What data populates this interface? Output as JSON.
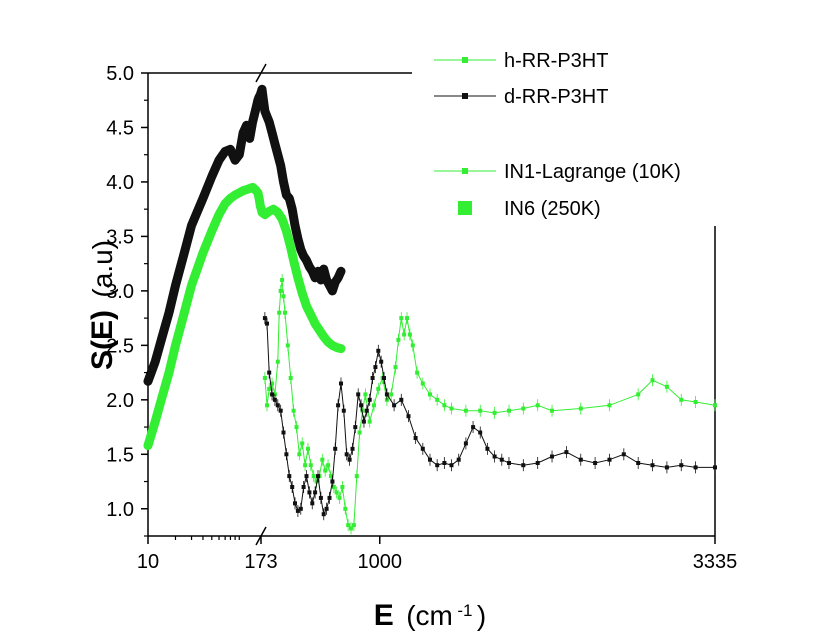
{
  "chart_data": {
    "type": "scatter",
    "title": "",
    "xlabel": {
      "main": "E",
      "unit_base": "(cm",
      "unit_exp": "-1",
      "unit_close": ")"
    },
    "ylabel": {
      "main": "S(E)",
      "unit": "(a.u)"
    },
    "ylim": [
      0.75,
      5.0
    ],
    "x_segments": [
      {
        "range": [
          10,
          173
        ],
        "scale": "log"
      },
      {
        "range": [
          173,
          3335
        ],
        "scale": "linear"
      }
    ],
    "x_ticks": [
      {
        "value": 10,
        "label": "10"
      },
      {
        "value": 173,
        "label": "173"
      },
      {
        "value": 1000,
        "label": "1000"
      },
      {
        "value": 3335,
        "label": "3335"
      }
    ],
    "y_ticks": [
      {
        "value": 1.0,
        "label": "1.0"
      },
      {
        "value": 1.5,
        "label": "1.5"
      },
      {
        "value": 2.0,
        "label": "2.0"
      },
      {
        "value": 2.5,
        "label": "2.5"
      },
      {
        "value": 3.0,
        "label": "3.0"
      },
      {
        "value": 3.5,
        "label": "3.5"
      },
      {
        "value": 4.0,
        "label": "4.0"
      },
      {
        "value": 4.5,
        "label": "4.5"
      },
      {
        "value": 5.0,
        "label": "5.0"
      }
    ],
    "legend_position": "top-right",
    "series": [
      {
        "name": "h-RR-P3HT",
        "color": "#33ee33",
        "style": "thick-markers",
        "x": [
          10,
          12,
          14,
          17,
          20,
          25,
          30,
          40,
          50,
          60,
          70,
          80,
          90,
          100,
          110,
          120,
          130,
          140,
          150,
          160,
          165,
          170,
          173,
          180,
          200,
          230,
          260,
          290,
          320,
          350,
          380,
          400,
          430,
          460,
          490,
          520,
          550,
          580,
          610,
          640,
          670,
          700,
          730
        ],
        "values": [
          1.58,
          1.8,
          2.0,
          2.25,
          2.5,
          2.8,
          3.05,
          3.35,
          3.55,
          3.7,
          3.8,
          3.85,
          3.88,
          3.9,
          3.92,
          3.93,
          3.94,
          3.95,
          3.93,
          3.9,
          3.85,
          3.78,
          3.76,
          3.72,
          3.7,
          3.73,
          3.75,
          3.72,
          3.66,
          3.55,
          3.4,
          3.28,
          3.12,
          2.98,
          2.86,
          2.78,
          2.7,
          2.64,
          2.58,
          2.53,
          2.5,
          2.48,
          2.47
        ]
      },
      {
        "name": "d-RR-P3HT",
        "color": "#111111",
        "style": "thick-markers",
        "x": [
          10,
          12,
          14,
          17,
          20,
          25,
          30,
          40,
          50,
          60,
          70,
          80,
          90,
          100,
          110,
          120,
          130,
          140,
          150,
          160,
          165,
          170,
          173,
          180,
          190,
          200,
          215,
          230,
          250,
          270,
          290,
          310,
          330,
          350,
          370,
          390,
          410,
          430,
          450,
          470,
          490,
          510,
          530,
          550,
          570,
          590,
          610,
          630,
          650,
          670,
          690,
          710,
          730
        ],
        "values": [
          2.17,
          2.35,
          2.55,
          2.8,
          3.05,
          3.35,
          3.6,
          3.85,
          4.05,
          4.2,
          4.28,
          4.3,
          4.2,
          4.25,
          4.45,
          4.52,
          4.4,
          4.55,
          4.65,
          4.75,
          4.78,
          4.8,
          4.82,
          4.85,
          4.75,
          4.65,
          4.6,
          4.55,
          4.45,
          4.35,
          4.25,
          4.15,
          4.0,
          3.88,
          3.85,
          3.75,
          3.6,
          3.48,
          3.38,
          3.32,
          3.28,
          3.22,
          3.18,
          3.12,
          3.18,
          3.1,
          3.2,
          3.1,
          3.05,
          3.0,
          3.08,
          3.12,
          3.18
        ]
      },
      {
        "name": "IN1-Lagrange (10K)",
        "color": "#33ee33",
        "style": "thin-line-markers",
        "x": [
          200,
          215,
          230,
          250,
          270,
          290,
          300,
          310,
          320,
          330,
          340,
          360,
          380,
          400,
          420,
          440,
          460,
          480,
          500,
          520,
          540,
          560,
          580,
          600,
          620,
          640,
          660,
          680,
          700,
          720,
          740,
          760,
          780,
          800,
          820,
          840,
          860,
          880,
          900,
          930,
          960,
          990,
          1020,
          1050,
          1080,
          1110,
          1130,
          1150,
          1170,
          1190,
          1210,
          1230,
          1260,
          1300,
          1350,
          1400,
          1450,
          1500,
          1600,
          1700,
          1800,
          1900,
          2000,
          2100,
          2200,
          2400,
          2600,
          2800,
          2900,
          3000,
          3100,
          3200,
          3335
        ],
        "values": [
          2.2,
          1.95,
          2.1,
          2.15,
          2.05,
          2.35,
          2.8,
          3.0,
          3.1,
          2.95,
          2.8,
          2.5,
          2.2,
          1.9,
          1.75,
          1.5,
          1.6,
          1.4,
          1.55,
          1.4,
          1.3,
          1.25,
          1.3,
          1.45,
          1.35,
          1.4,
          1.3,
          1.2,
          1.15,
          1.1,
          1.2,
          1.0,
          0.85,
          0.82,
          0.85,
          1.3,
          1.7,
          1.9,
          2.05,
          1.8,
          1.95,
          2.1,
          2.2,
          2.0,
          2.05,
          2.3,
          2.55,
          2.75,
          2.6,
          2.75,
          2.6,
          2.5,
          2.25,
          2.15,
          2.05,
          2.0,
          1.95,
          1.92,
          1.9,
          1.9,
          1.88,
          1.9,
          1.92,
          1.95,
          1.9,
          1.92,
          1.95,
          2.05,
          2.18,
          2.12,
          2.0,
          1.98,
          1.95
        ]
      },
      {
        "name": "IN6 (250K)",
        "color": "#111111",
        "style": "thin-line-markers",
        "x": [
          200,
          215,
          230,
          250,
          270,
          290,
          310,
          330,
          350,
          370,
          390,
          410,
          430,
          450,
          470,
          490,
          510,
          530,
          550,
          570,
          590,
          610,
          630,
          650,
          670,
          690,
          710,
          730,
          750,
          770,
          790,
          810,
          830,
          850,
          870,
          890,
          910,
          930,
          950,
          970,
          990,
          1010,
          1030,
          1050,
          1100,
          1150,
          1200,
          1250,
          1300,
          1350,
          1400,
          1450,
          1500,
          1550,
          1600,
          1650,
          1700,
          1750,
          1800,
          1850,
          1900,
          2000,
          2100,
          2200,
          2300,
          2400,
          2500,
          2600,
          2700,
          2800,
          2900,
          3000,
          3100,
          3200,
          3335
        ],
        "values": [
          2.75,
          2.7,
          2.25,
          2.05,
          2.0,
          1.95,
          1.9,
          1.7,
          1.5,
          1.3,
          1.2,
          1.05,
          0.98,
          1.0,
          1.2,
          1.3,
          1.15,
          1.05,
          1.15,
          1.3,
          1.1,
          0.95,
          1.0,
          1.1,
          1.25,
          1.55,
          1.95,
          2.15,
          1.9,
          1.5,
          1.45,
          1.55,
          1.75,
          2.05,
          1.95,
          1.8,
          1.9,
          2.0,
          2.2,
          2.3,
          2.45,
          2.35,
          2.2,
          2.05,
          1.95,
          2.0,
          1.85,
          1.65,
          1.55,
          1.45,
          1.4,
          1.42,
          1.4,
          1.45,
          1.6,
          1.75,
          1.7,
          1.55,
          1.48,
          1.45,
          1.42,
          1.4,
          1.42,
          1.48,
          1.52,
          1.45,
          1.42,
          1.45,
          1.5,
          1.42,
          1.4,
          1.38,
          1.4,
          1.38,
          1.38
        ]
      }
    ]
  }
}
